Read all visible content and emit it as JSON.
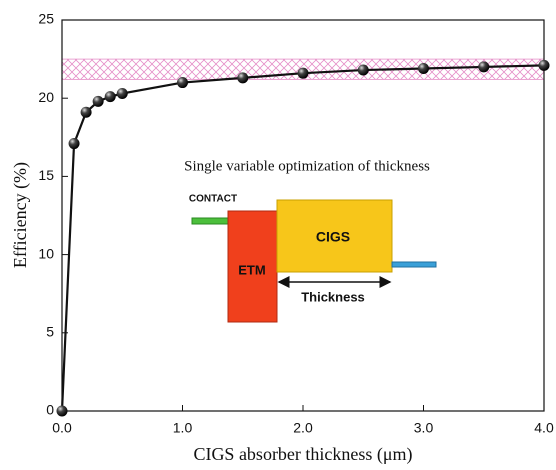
{
  "chart_data": {
    "type": "line",
    "x_label": "CIGS absorber thickness (μm)",
    "y_label": "Efficiency (%)",
    "x": [
      0.0,
      0.1,
      0.2,
      0.3,
      0.4,
      0.5,
      1.0,
      1.5,
      2.0,
      2.5,
      3.0,
      3.5,
      4.0
    ],
    "series": [
      {
        "color": "#111111",
        "values": [
          0,
          17.1,
          19.1,
          19.8,
          20.1,
          20.3,
          21.0,
          21.3,
          21.6,
          21.8,
          21.9,
          22.0,
          22.1
        ]
      }
    ],
    "band": [
      21.2,
      22.5
    ],
    "band_color": "#e58fc8",
    "xlim": [
      0,
      4
    ],
    "xticks": [
      {
        "value": 0,
        "label": "0.0"
      },
      {
        "value": 1,
        "label": "1.0"
      },
      {
        "value": 2,
        "label": "2.0"
      },
      {
        "value": 3,
        "label": "3.0"
      },
      {
        "value": 4,
        "label": "4.0"
      }
    ],
    "ylim": [
      0,
      25
    ],
    "yticks": [
      0,
      5,
      10,
      15,
      20,
      25
    ],
    "annotations": {
      "title": "Single variable optimization of  thickness",
      "contact": "CONTACT",
      "etm": "ETM",
      "cigs": "CIGS",
      "thickness": "Thickness"
    }
  }
}
